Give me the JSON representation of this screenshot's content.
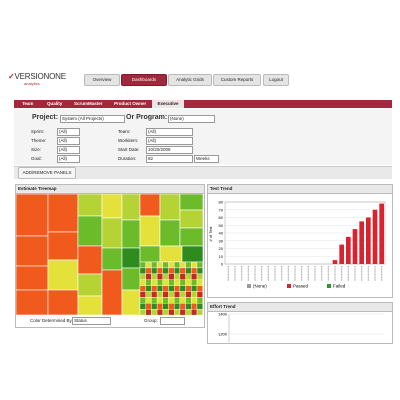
{
  "logo": {
    "brand": "VERSIONONE",
    "product": "analytics"
  },
  "nav": [
    "Overview",
    "Dashboards",
    "Analytic Grids",
    "Custom Reports"
  ],
  "logout": "Logout",
  "tabs": [
    "Team",
    "Quality",
    "ScrumMaster",
    "Product Owner",
    "Executive"
  ],
  "project": {
    "label": "Project:",
    "value": "System (All Projects)",
    "program_label": "Or Program:",
    "program_value": "(None)"
  },
  "filters": [
    {
      "label": "Sprint:",
      "value": "(All)"
    },
    {
      "label": "Theme:",
      "value": "(All)"
    },
    {
      "label": "Size:",
      "value": "(All)"
    },
    {
      "label": "Goal:",
      "value": "(All)"
    },
    {
      "label": "Team:",
      "value": "(All)"
    },
    {
      "label": "Workitem:",
      "value": "(All)"
    },
    {
      "label": "Start Date:",
      "value": "10/20/2009"
    },
    {
      "label": "Duration:",
      "value": "82"
    }
  ],
  "duration_unit": "Weeks",
  "add_panels": "ADD/REMOVE PANELS",
  "treemap": {
    "title": "Estimate Treemap",
    "color_label": "Color Determined By:",
    "color_value": "Status",
    "group_label": "Group:"
  },
  "chart_data": [
    {
      "type": "bar",
      "title": "Test Trend",
      "y_label": "# of Test",
      "ylim": [
        0,
        80
      ],
      "yticks": [
        0,
        10,
        20,
        30,
        40,
        50,
        60,
        70,
        80
      ],
      "series": [
        {
          "name": "(None)",
          "color": "#9a9a9a",
          "values": [
            null,
            null,
            null,
            null,
            null,
            null,
            null,
            null,
            null,
            null,
            null,
            null,
            null,
            null,
            null,
            null,
            null,
            null,
            null,
            null,
            null,
            null,
            null,
            null
          ]
        },
        {
          "name": "Passed",
          "color": "#d9232e",
          "values": [
            null,
            null,
            null,
            null,
            null,
            null,
            null,
            null,
            null,
            null,
            null,
            null,
            null,
            null,
            null,
            null,
            5,
            25,
            35,
            45,
            55,
            60,
            70,
            78
          ]
        },
        {
          "name": "Failed",
          "color": "#2e9a2e",
          "values": [
            null,
            null,
            null,
            null,
            null,
            null,
            null,
            null,
            null,
            null,
            null,
            null,
            null,
            null,
            null,
            null,
            null,
            null,
            null,
            null,
            null,
            null,
            null,
            null
          ]
        }
      ]
    },
    {
      "type": "line",
      "title": "Effort Trend",
      "ylim": [
        1100,
        1400
      ],
      "yticks": [
        1200,
        1400
      ]
    }
  ]
}
